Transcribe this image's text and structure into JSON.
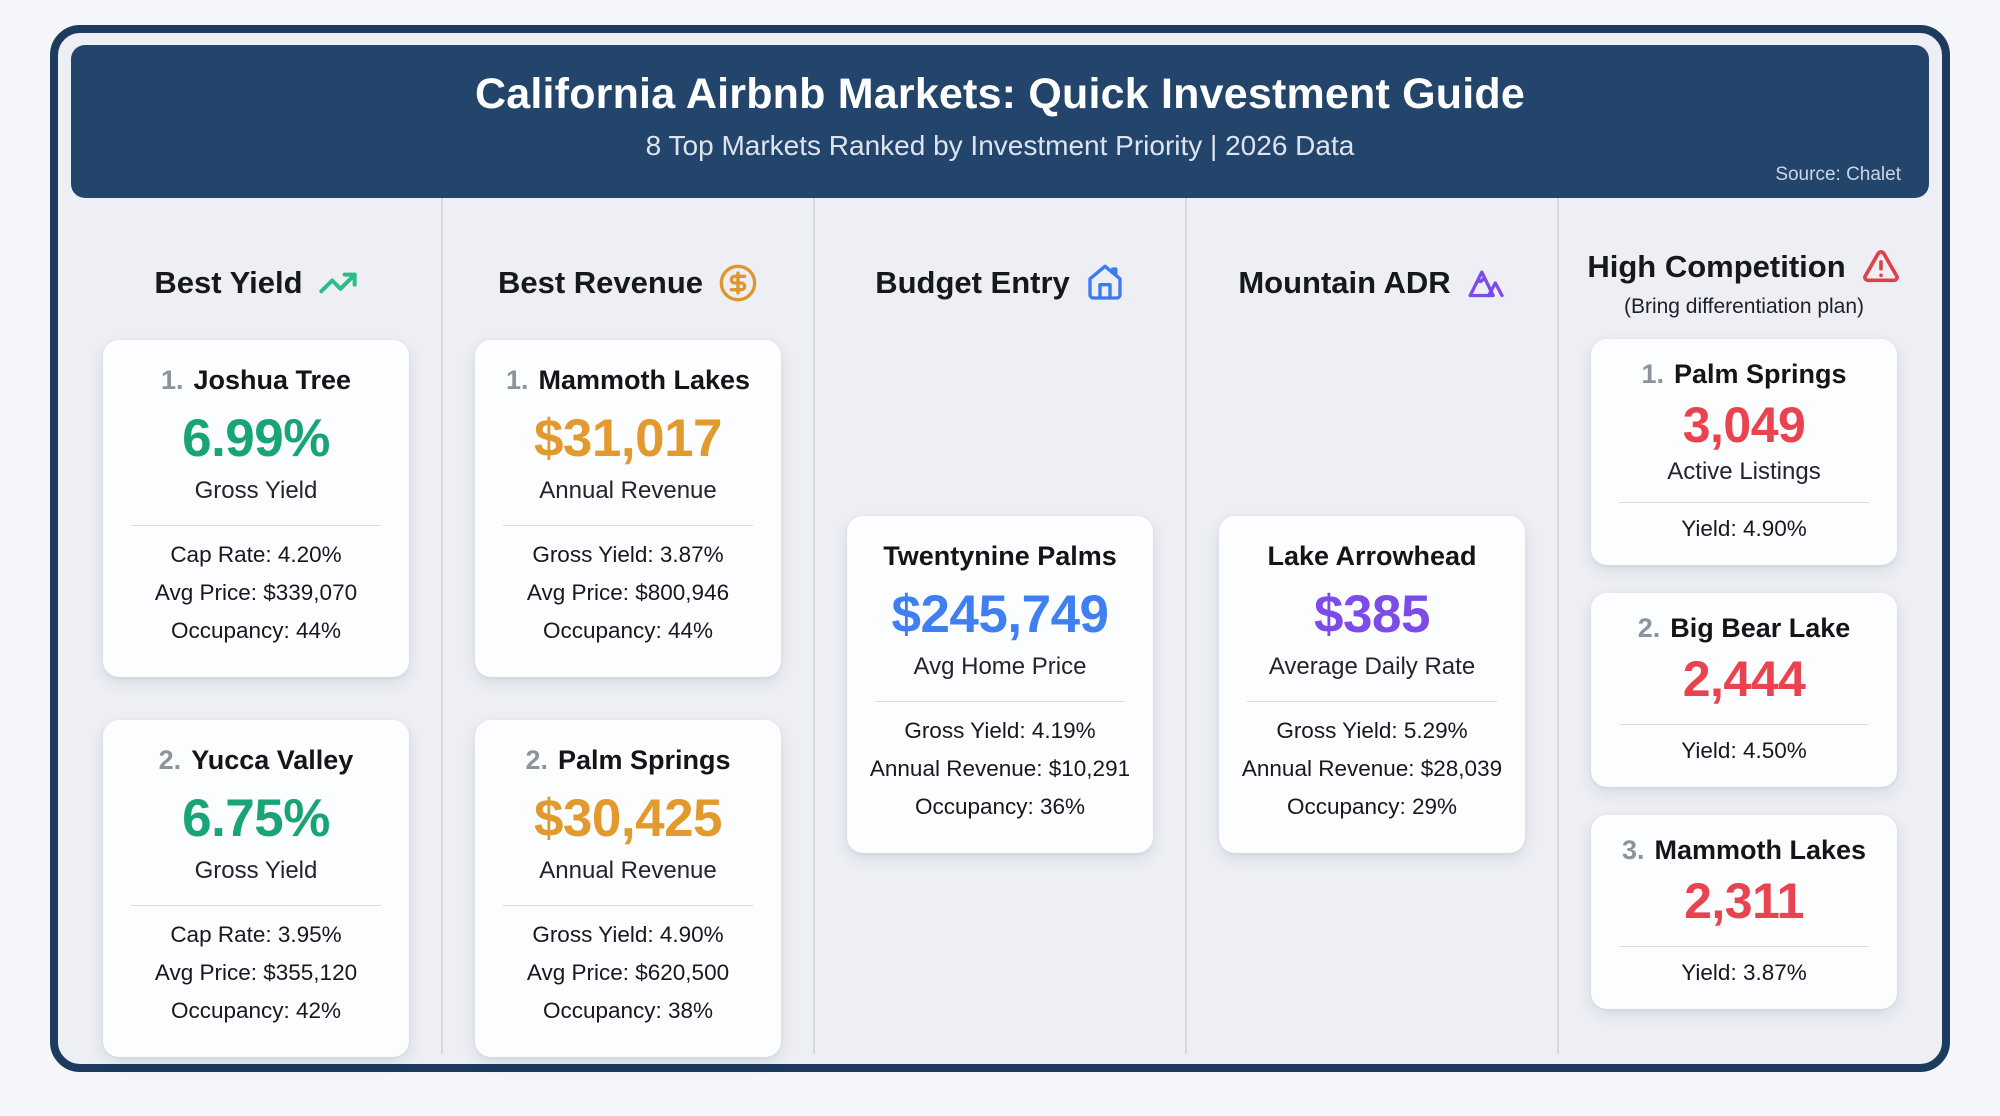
{
  "header": {
    "title": "California Airbnb Markets: Quick Investment Guide",
    "subtitle": "8 Top Markets Ranked by Investment Priority | 2026 Data",
    "source": "Source: Chalet"
  },
  "palette": {
    "navy_border": "#1d3b5f",
    "navy_header": "#23456b",
    "page_background": "#edeff5",
    "card_background": "#fcfdfe",
    "green": "#18a474",
    "gold": "#e29a2e",
    "blue": "#3f7ff0",
    "purple": "#7c4be8",
    "red": "#e8434e",
    "rank_gray": "#8d939d"
  },
  "columns": [
    {
      "title": "Best Yield",
      "icon": "trending-up-icon",
      "icon_color": "#2cbd86",
      "accent": "#18a474",
      "cards": [
        {
          "rank": "1.",
          "name": "Joshua Tree",
          "value": "6.99%",
          "value_label": "Gross Yield",
          "details": [
            "Cap Rate: 4.20%",
            "Avg Price: $339,070",
            "Occupancy: 44%"
          ]
        },
        {
          "rank": "2.",
          "name": "Yucca Valley",
          "value": "6.75%",
          "value_label": "Gross Yield",
          "details": [
            "Cap Rate: 3.95%",
            "Avg Price: $355,120",
            "Occupancy: 42%"
          ]
        }
      ]
    },
    {
      "title": "Best Revenue",
      "icon": "circle-dollar-icon",
      "icon_color": "#e0962e",
      "accent": "#e29a2e",
      "cards": [
        {
          "rank": "1.",
          "name": "Mammoth Lakes",
          "value": "$31,017",
          "value_label": "Annual Revenue",
          "details": [
            "Gross Yield: 3.87%",
            "Avg Price: $800,946",
            "Occupancy: 44%"
          ]
        },
        {
          "rank": "2.",
          "name": "Palm Springs",
          "value": "$30,425",
          "value_label": "Annual Revenue",
          "details": [
            "Gross Yield: 4.90%",
            "Avg Price: $620,500",
            "Occupancy: 38%"
          ]
        }
      ]
    },
    {
      "title": "Budget Entry",
      "icon": "house-icon",
      "icon_color": "#3b7af0",
      "accent": "#3f7ff0",
      "cards": [
        {
          "rank": "",
          "name": "Twentynine Palms",
          "value": "$245,749",
          "value_label": "Avg Home Price",
          "details": [
            "Gross Yield: 4.19%",
            "Annual Revenue: $10,291",
            "Occupancy: 36%"
          ]
        }
      ]
    },
    {
      "title": "Mountain ADR",
      "icon": "mountain-icon",
      "icon_color": "#7c4be8",
      "accent": "#7c4be8",
      "cards": [
        {
          "rank": "",
          "name": "Lake Arrowhead",
          "value": "$385",
          "value_label": "Average Daily Rate",
          "details": [
            "Gross Yield: 5.29%",
            "Annual Revenue: $28,039",
            "Occupancy: 29%"
          ]
        }
      ]
    },
    {
      "title": "High Competition",
      "subtitle": "(Bring differentiation plan)",
      "icon": "warning-triangle-icon",
      "icon_color": "#de414c",
      "accent": "#e8434e",
      "cards": [
        {
          "rank": "1.",
          "name": "Palm Springs",
          "value": "3,049",
          "value_label": "Active Listings",
          "details": [
            "Yield: 4.90%"
          ]
        },
        {
          "rank": "2.",
          "name": "Big Bear Lake",
          "value": "2,444",
          "value_label": "",
          "details": [
            "Yield: 4.50%"
          ]
        },
        {
          "rank": "3.",
          "name": "Mammoth Lakes",
          "value": "2,311",
          "value_label": "",
          "details": [
            "Yield: 3.87%"
          ]
        }
      ]
    }
  ],
  "chart_data": {
    "type": "table",
    "title": "California Airbnb Markets: Quick Investment Guide",
    "subtitle": "8 Top Markets Ranked by Investment Priority | 2026 Data",
    "source": "Chalet",
    "groups": [
      {
        "category": "Best Yield",
        "markets": [
          {
            "rank": 1,
            "market": "Joshua Tree",
            "gross_yield_pct": 6.99,
            "cap_rate_pct": 4.2,
            "avg_price_usd": 339070,
            "occupancy_pct": 44
          },
          {
            "rank": 2,
            "market": "Yucca Valley",
            "gross_yield_pct": 6.75,
            "cap_rate_pct": 3.95,
            "avg_price_usd": 355120,
            "occupancy_pct": 42
          }
        ]
      },
      {
        "category": "Best Revenue",
        "markets": [
          {
            "rank": 1,
            "market": "Mammoth Lakes",
            "annual_revenue_usd": 31017,
            "gross_yield_pct": 3.87,
            "avg_price_usd": 800946,
            "occupancy_pct": 44
          },
          {
            "rank": 2,
            "market": "Palm Springs",
            "annual_revenue_usd": 30425,
            "gross_yield_pct": 4.9,
            "avg_price_usd": 620500,
            "occupancy_pct": 38
          }
        ]
      },
      {
        "category": "Budget Entry",
        "markets": [
          {
            "market": "Twentynine Palms",
            "avg_home_price_usd": 245749,
            "gross_yield_pct": 4.19,
            "annual_revenue_usd": 10291,
            "occupancy_pct": 36
          }
        ]
      },
      {
        "category": "Mountain ADR",
        "markets": [
          {
            "market": "Lake Arrowhead",
            "average_daily_rate_usd": 385,
            "gross_yield_pct": 5.29,
            "annual_revenue_usd": 28039,
            "occupancy_pct": 29
          }
        ]
      },
      {
        "category": "High Competition (Bring differentiation plan)",
        "markets": [
          {
            "rank": 1,
            "market": "Palm Springs",
            "active_listings": 3049,
            "gross_yield_pct": 4.9
          },
          {
            "rank": 2,
            "market": "Big Bear Lake",
            "active_listings": 2444,
            "gross_yield_pct": 4.5
          },
          {
            "rank": 3,
            "market": "Mammoth Lakes",
            "active_listings": 2311,
            "gross_yield_pct": 3.87
          }
        ]
      }
    ]
  }
}
